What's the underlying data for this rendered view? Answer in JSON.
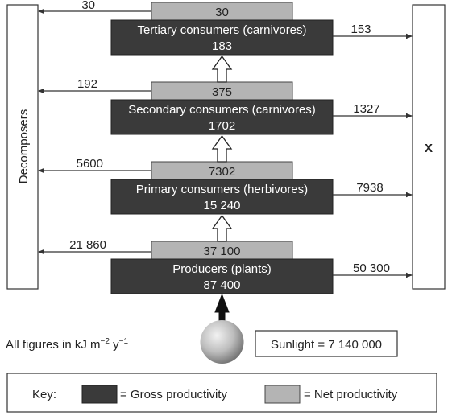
{
  "decomposers_label": "Decomposers",
  "x_label": "X",
  "levels": [
    {
      "name": "Tertiary consumers (carnivores)",
      "gross": "183",
      "net": "30",
      "to_decomposers": "30",
      "to_x": "153"
    },
    {
      "name": "Secondary consumers (carnivores)",
      "gross": "1702",
      "net": "375",
      "to_decomposers": "192",
      "to_x": "1327"
    },
    {
      "name": "Primary consumers (herbivores)",
      "gross": "15 240",
      "net": "7302",
      "to_decomposers": "5600",
      "to_x": "7938"
    },
    {
      "name": "Producers (plants)",
      "gross": "87 400",
      "net": "37 100",
      "to_decomposers": "21 860",
      "to_x": "50 300"
    }
  ],
  "units": {
    "prefix": "All figures in kJ m",
    "exp1": "−2",
    "mid": " y",
    "exp2": "−1"
  },
  "sunlight": "Sunlight = 7 140 000",
  "key": {
    "title": "Key:",
    "gross_label": "= Gross productivity",
    "net_label": "= Net productivity"
  },
  "colors": {
    "gross_fill": "#3a3a3a",
    "net_fill": "#b4b4b4",
    "sun_light": "#f2f2f2",
    "sun_dark": "#6e6e6e"
  }
}
